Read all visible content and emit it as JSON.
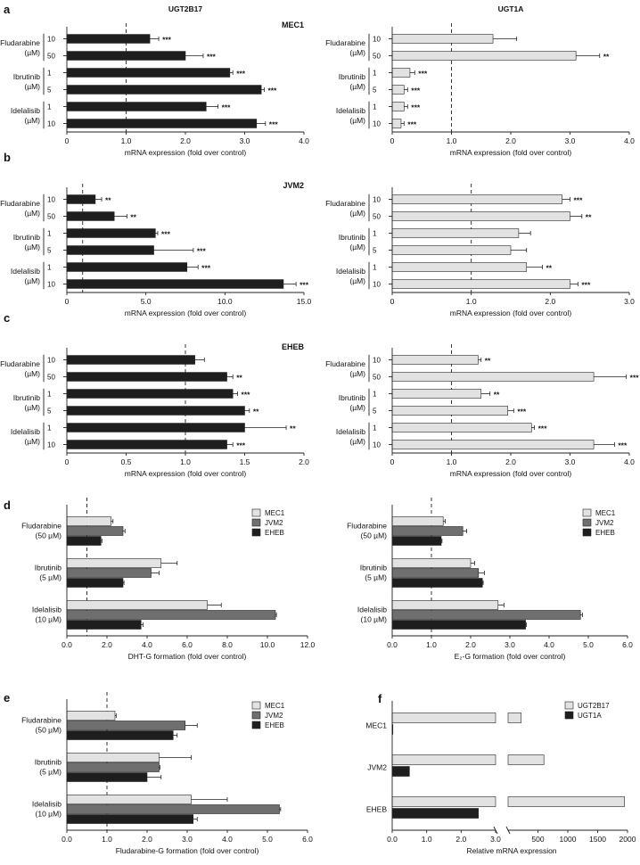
{
  "colors": {
    "dark": "#1e1e1e",
    "light": "#e2e2e2",
    "mid": "#6f6f6f",
    "axis": "#222222"
  },
  "chart_data": [
    {
      "id": "a-left",
      "type": "bar",
      "orientation": "horizontal",
      "panel_letter": "a",
      "title": "UGT2B17",
      "subtitle": "MEC1",
      "xlabel": "mRNA expression (fold over control)",
      "xlim": [
        0,
        4
      ],
      "ref_line": 1,
      "xticks": [
        "0",
        "1.0",
        "2.0",
        "3.0",
        "4.0"
      ],
      "groups": [
        {
          "label": [
            "Fludarabine",
            "(µM)"
          ],
          "bars": [
            {
              "dose": "10",
              "value": 1.4,
              "err": 0.15,
              "sig": "***"
            },
            {
              "dose": "50",
              "value": 2.0,
              "err": 0.3,
              "sig": "***"
            }
          ]
        },
        {
          "label": [
            "Ibrutinib",
            "(µM)"
          ],
          "bars": [
            {
              "dose": "1",
              "value": 2.75,
              "err": 0.05,
              "sig": "***"
            },
            {
              "dose": "5",
              "value": 3.28,
              "err": 0.05,
              "sig": "***"
            }
          ]
        },
        {
          "label": [
            "Idelalisib",
            "(µM)"
          ],
          "bars": [
            {
              "dose": "1",
              "value": 2.35,
              "err": 0.2,
              "sig": "***"
            },
            {
              "dose": "10",
              "value": 3.2,
              "err": 0.15,
              "sig": "***"
            }
          ]
        }
      ]
    },
    {
      "id": "a-right",
      "type": "bar",
      "orientation": "horizontal",
      "title": "UGT1A",
      "xlabel": "mRNA expression (fold over control)",
      "xlim": [
        0,
        4
      ],
      "ref_line": 1,
      "xticks": [
        "0",
        "1.0",
        "2.0",
        "3.0",
        "4.0"
      ],
      "groups": [
        {
          "label": [
            "Fludarabine",
            "(µM)"
          ],
          "bars": [
            {
              "dose": "10",
              "value": 1.7,
              "err": 0.4,
              "sig": ""
            },
            {
              "dose": "50",
              "value": 3.1,
              "err": 0.4,
              "sig": "**"
            }
          ]
        },
        {
          "label": [
            "Ibrutinib",
            "(µM)"
          ],
          "bars": [
            {
              "dose": "1",
              "value": 0.3,
              "err": 0.08,
              "sig": "***"
            },
            {
              "dose": "5",
              "value": 0.2,
              "err": 0.06,
              "sig": "***"
            }
          ]
        },
        {
          "label": [
            "Idelalisib",
            "(µM)"
          ],
          "bars": [
            {
              "dose": "1",
              "value": 0.2,
              "err": 0.06,
              "sig": "***"
            },
            {
              "dose": "10",
              "value": 0.15,
              "err": 0.05,
              "sig": "***"
            }
          ]
        }
      ]
    },
    {
      "id": "b-left",
      "type": "bar",
      "orientation": "horizontal",
      "panel_letter": "b",
      "subtitle": "JVM2",
      "xlabel": "mRNA expression (fold over control)",
      "xlim": [
        0,
        15
      ],
      "ref_line": 1,
      "xticks": [
        "0",
        "5.0",
        "10.0",
        "15.0"
      ],
      "groups": [
        {
          "label": [
            "Fludarabine",
            "(µM)"
          ],
          "bars": [
            {
              "dose": "10",
              "value": 1.8,
              "err": 0.4,
              "sig": "**"
            },
            {
              "dose": "50",
              "value": 3.0,
              "err": 0.8,
              "sig": "**"
            }
          ]
        },
        {
          "label": [
            "Ibrutinib",
            "(µM)"
          ],
          "bars": [
            {
              "dose": "1",
              "value": 5.6,
              "err": 0.15,
              "sig": "***"
            },
            {
              "dose": "5",
              "value": 5.5,
              "err": 2.5,
              "sig": "***"
            }
          ]
        },
        {
          "label": [
            "Idelalisib",
            "(µM)"
          ],
          "bars": [
            {
              "dose": "1",
              "value": 7.6,
              "err": 0.7,
              "sig": "***"
            },
            {
              "dose": "10",
              "value": 13.7,
              "err": 0.8,
              "sig": "***"
            }
          ]
        }
      ]
    },
    {
      "id": "b-right",
      "type": "bar",
      "orientation": "horizontal",
      "xlabel": "mRNA expression (fold over control)",
      "xlim": [
        0,
        3
      ],
      "ref_line": 1,
      "xticks": [
        "0",
        "1.0",
        "2.0",
        "3.0"
      ],
      "groups": [
        {
          "label": [
            "Fludarabine",
            "(µM)"
          ],
          "bars": [
            {
              "dose": "10",
              "value": 2.15,
              "err": 0.1,
              "sig": "***"
            },
            {
              "dose": "50",
              "value": 2.25,
              "err": 0.15,
              "sig": "**"
            }
          ]
        },
        {
          "label": [
            "Ibrutinib",
            "(µM)"
          ],
          "bars": [
            {
              "dose": "1",
              "value": 1.6,
              "err": 0.15,
              "sig": ""
            },
            {
              "dose": "5",
              "value": 1.5,
              "err": 0.2,
              "sig": ""
            }
          ]
        },
        {
          "label": [
            "Idelalisib",
            "(µM)"
          ],
          "bars": [
            {
              "dose": "1",
              "value": 1.7,
              "err": 0.2,
              "sig": "**"
            },
            {
              "dose": "10",
              "value": 2.25,
              "err": 0.1,
              "sig": "***"
            }
          ]
        }
      ]
    },
    {
      "id": "c-left",
      "type": "bar",
      "orientation": "horizontal",
      "panel_letter": "c",
      "subtitle": "EHEB",
      "xlabel": "mRNA expression (fold over control)",
      "xlim": [
        0,
        2
      ],
      "ref_line": 1,
      "xticks": [
        "0",
        "0.5",
        "1.0",
        "1.5",
        "2.0"
      ],
      "groups": [
        {
          "label": [
            "Fludarabine",
            "(µM)"
          ],
          "bars": [
            {
              "dose": "10",
              "value": 1.08,
              "err": 0.08,
              "sig": ""
            },
            {
              "dose": "50",
              "value": 1.35,
              "err": 0.05,
              "sig": "**"
            }
          ]
        },
        {
          "label": [
            "Ibrutinib",
            "(µM)"
          ],
          "bars": [
            {
              "dose": "1",
              "value": 1.4,
              "err": 0.04,
              "sig": "***"
            },
            {
              "dose": "5",
              "value": 1.5,
              "err": 0.04,
              "sig": "**"
            }
          ]
        },
        {
          "label": [
            "Idelalisib",
            "(µM)"
          ],
          "bars": [
            {
              "dose": "1",
              "value": 1.5,
              "err": 0.35,
              "sig": "**"
            },
            {
              "dose": "10",
              "value": 1.35,
              "err": 0.05,
              "sig": "***"
            }
          ]
        }
      ]
    },
    {
      "id": "c-right",
      "type": "bar",
      "orientation": "horizontal",
      "xlabel": "mRNA expression (fold over control)",
      "xlim": [
        0,
        4
      ],
      "ref_line": 1,
      "xticks": [
        "0",
        "1.0",
        "2.0",
        "3.0",
        "4.0"
      ],
      "groups": [
        {
          "label": [
            "Fludarabine",
            "(µM)"
          ],
          "bars": [
            {
              "dose": "10",
              "value": 1.45,
              "err": 0.05,
              "sig": "**"
            },
            {
              "dose": "50",
              "value": 3.4,
              "err": 0.55,
              "sig": "***"
            }
          ]
        },
        {
          "label": [
            "Ibrutinib",
            "(µM)"
          ],
          "bars": [
            {
              "dose": "1",
              "value": 1.5,
              "err": 0.15,
              "sig": "**"
            },
            {
              "dose": "5",
              "value": 1.95,
              "err": 0.1,
              "sig": "***"
            }
          ]
        },
        {
          "label": [
            "Idelalisib",
            "(µM)"
          ],
          "bars": [
            {
              "dose": "1",
              "value": 2.35,
              "err": 0.05,
              "sig": "***"
            },
            {
              "dose": "10",
              "value": 3.4,
              "err": 0.35,
              "sig": "***"
            }
          ]
        }
      ]
    },
    {
      "id": "d-left",
      "type": "bar",
      "orientation": "horizontal",
      "panel_letter": "d",
      "xlabel": "DHT-G formation (fold over control)",
      "xlim": [
        0,
        12
      ],
      "ref_line": 1,
      "xticks": [
        "0.0",
        "2.0",
        "4.0",
        "6.0",
        "8.0",
        "10.0",
        "12.0"
      ],
      "legend": [
        "MEC1",
        "JVM2",
        "EHEB"
      ],
      "legend_position": "top-right",
      "categories": [
        [
          "Fludarabine",
          "(50 µM)"
        ],
        [
          "Ibrutinib",
          "(5 µM)"
        ],
        [
          "Idelalisib",
          "(10 µM)"
        ]
      ],
      "series": [
        {
          "name": "MEC1",
          "values": [
            2.2,
            4.7,
            7.0
          ],
          "err": [
            0.1,
            0.8,
            0.7
          ]
        },
        {
          "name": "JVM2",
          "values": [
            2.8,
            4.2,
            10.4
          ],
          "err": [
            0.1,
            0.4,
            0.05
          ]
        },
        {
          "name": "EHEB",
          "values": [
            1.7,
            2.8,
            3.7
          ],
          "err": [
            0.05,
            0.05,
            0.1
          ]
        }
      ]
    },
    {
      "id": "d-right",
      "type": "bar",
      "orientation": "horizontal",
      "xlabel": "E₂-G formation (fold over control)",
      "xlim": [
        0,
        6
      ],
      "ref_line": 1,
      "xticks": [
        "0.0",
        "1.0",
        "2.0",
        "3.0",
        "4.0",
        "5.0",
        "6.0"
      ],
      "legend": [
        "MEC1",
        "JVM2",
        "EHEB"
      ],
      "legend_position": "top-right",
      "categories": [
        [
          "Fludarabine",
          "(50 µM)"
        ],
        [
          "Ibrutinib",
          "(5 µM)"
        ],
        [
          "Idelalisib",
          "(10 µM)"
        ]
      ],
      "series": [
        {
          "name": "MEC1",
          "values": [
            1.3,
            2.0,
            2.7
          ],
          "err": [
            0.05,
            0.1,
            0.15
          ]
        },
        {
          "name": "JVM2",
          "values": [
            1.8,
            2.2,
            4.8
          ],
          "err": [
            0.1,
            0.15,
            0.05
          ]
        },
        {
          "name": "EHEB",
          "values": [
            1.25,
            2.3,
            3.4
          ],
          "err": [
            0.02,
            0.02,
            0.02
          ]
        }
      ]
    },
    {
      "id": "e",
      "type": "bar",
      "orientation": "horizontal",
      "panel_letter": "e",
      "xlabel": "Fludarabine-G formation (fold over control)",
      "xlim": [
        0,
        6
      ],
      "ref_line": 1,
      "xticks": [
        "0.0",
        "1.0",
        "2.0",
        "3.0",
        "4.0",
        "5.0",
        "6.0"
      ],
      "legend": [
        "MEC1",
        "JVM2",
        "EHEB"
      ],
      "legend_position": "top-right",
      "categories": [
        [
          "Fludarabine",
          "(50 µM)"
        ],
        [
          "Ibrutinib",
          "(5 µM)"
        ],
        [
          "Idelalisib",
          "(10 µM)"
        ]
      ],
      "series": [
        {
          "name": "MEC1",
          "values": [
            1.2,
            2.3,
            3.1
          ],
          "err": [
            0.03,
            0.8,
            0.9
          ]
        },
        {
          "name": "JVM2",
          "values": [
            2.95,
            2.3,
            5.3
          ],
          "err": [
            0.3,
            0.02,
            0.03
          ]
        },
        {
          "name": "EHEB",
          "values": [
            2.65,
            2.0,
            3.15
          ],
          "err": [
            0.1,
            0.35,
            0.1
          ]
        }
      ]
    },
    {
      "id": "f",
      "type": "bar",
      "orientation": "horizontal",
      "panel_letter": "f",
      "xlabel": "Relative mRNA expression",
      "axis_break": true,
      "xticks_left": [
        "0.0",
        "1.0",
        "2.0",
        "3.0"
      ],
      "xticks_right": [
        "500",
        "1000",
        "1500",
        "2000"
      ],
      "legend": [
        "UGT2B17",
        "UGT1A"
      ],
      "legend_position": "top-right",
      "categories": [
        "MEC1",
        "JVM2",
        "EHEB"
      ],
      "series": [
        {
          "name": "UGT2B17",
          "values": [
            220,
            600,
            1950
          ]
        },
        {
          "name": "UGT1A",
          "values": [
            0.02,
            0.5,
            2.5
          ]
        }
      ]
    }
  ]
}
